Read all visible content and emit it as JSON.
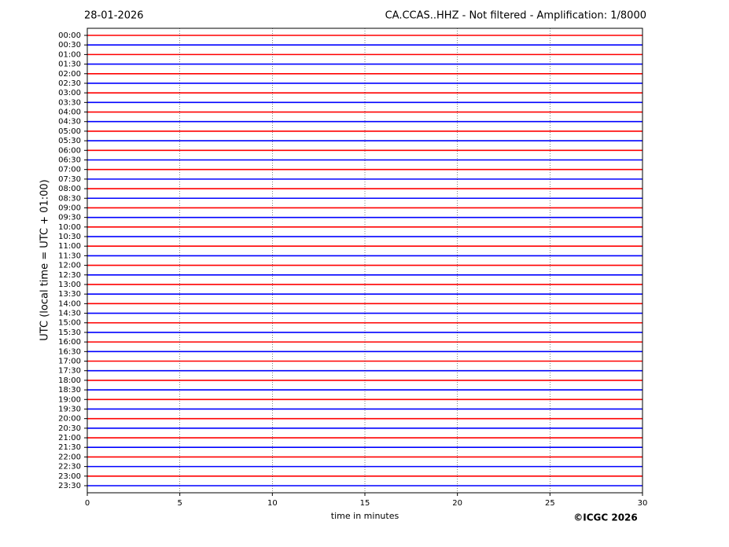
{
  "chart_data": {
    "type": "helicorder",
    "date": "28-01-2026",
    "title": "CA.CCAS..HHZ - Not filtered - Amplification: 1/8000",
    "ylabel": "UTC (local time = UTC + 01:00)",
    "xlabel": "time in minutes",
    "categories": [
      "00:00",
      "00:30",
      "01:00",
      "01:30",
      "02:00",
      "02:30",
      "03:00",
      "03:30",
      "04:00",
      "04:30",
      "05:00",
      "05:30",
      "06:00",
      "06:30",
      "07:00",
      "07:30",
      "08:00",
      "08:30",
      "09:00",
      "09:30",
      "10:00",
      "10:30",
      "11:00",
      "11:30",
      "12:00",
      "12:30",
      "13:00",
      "13:30",
      "14:00",
      "14:30",
      "15:00",
      "15:30",
      "16:00",
      "16:30",
      "17:00",
      "17:30",
      "18:00",
      "18:30",
      "19:00",
      "19:30",
      "20:00",
      "20:30",
      "21:00",
      "21:30",
      "22:00",
      "22:30",
      "23:00",
      "23:30"
    ],
    "xlim": [
      0,
      30
    ],
    "xticks": [
      0,
      5,
      10,
      15,
      20,
      25,
      30
    ],
    "grid": true,
    "colors": [
      "#ff0000",
      "#0000ff"
    ]
  },
  "copyright": "©ICGC 2026"
}
